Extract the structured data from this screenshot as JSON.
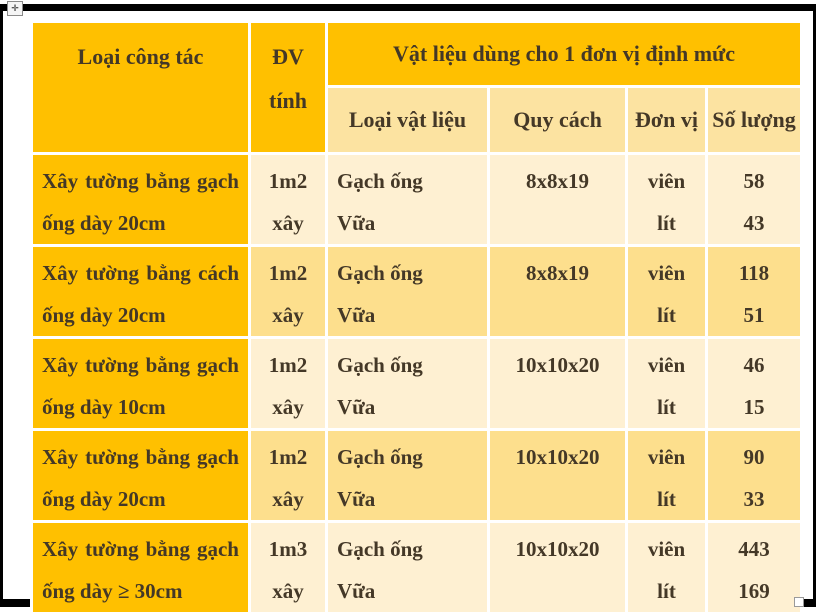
{
  "colors": {
    "orange": "#ffc000",
    "row-light": "#fef0d2",
    "row-mid": "#fddf8d",
    "subheader": "#fce3a1",
    "text": "#443827",
    "border": "#ffffff",
    "frame": "#000000"
  },
  "icons": {
    "table_move_handle": "✛"
  },
  "table": {
    "header": {
      "col_task": "Loại công tác",
      "col_unit_line1": "ĐV",
      "col_unit_line2": "tính",
      "materials_group": "Vật liệu dùng cho 1 đơn vị định mức",
      "sub_material": "Loại vật liệu",
      "sub_spec": "Quy cách",
      "sub_unit": "Đơn vị",
      "sub_qty": "Số lượng"
    },
    "rows": [
      {
        "task": "Xây tường bằng gạch ống dày 20cm",
        "unit1": "1m2",
        "unit2": "xây",
        "mat1": "Gạch ống",
        "mat2": "Vữa",
        "spec": "8x8x19",
        "u1": "viên",
        "u2": "lít",
        "q1": "58",
        "q2": "43"
      },
      {
        "task": "Xây tường bằng cách ống dày 20cm",
        "unit1": "1m2",
        "unit2": "xây",
        "mat1": "Gạch ống",
        "mat2": "Vữa",
        "spec": "8x8x19",
        "u1": "viên",
        "u2": "lít",
        "q1": "118",
        "q2": "51"
      },
      {
        "task": "Xây tường bằng gạch ống dày 10cm",
        "unit1": "1m2",
        "unit2": "xây",
        "mat1": "Gạch ống",
        "mat2": "Vữa",
        "spec": "10x10x20",
        "u1": "viên",
        "u2": "lít",
        "q1": "46",
        "q2": "15"
      },
      {
        "task": "Xây tường bằng gạch ống dày 20cm",
        "unit1": "1m2",
        "unit2": "xây",
        "mat1": "Gạch ống",
        "mat2": "Vữa",
        "spec": "10x10x20",
        "u1": "viên",
        "u2": "lít",
        "q1": "90",
        "q2": "33"
      },
      {
        "task": "Xây tường bằng gạch ống dày ≥ 30cm",
        "unit1": "1m3",
        "unit2": "xây",
        "mat1": "Gạch ống",
        "mat2": "Vữa",
        "spec": "10x10x20",
        "u1": "viên",
        "u2": "lít",
        "q1": "443",
        "q2": "169"
      }
    ]
  }
}
